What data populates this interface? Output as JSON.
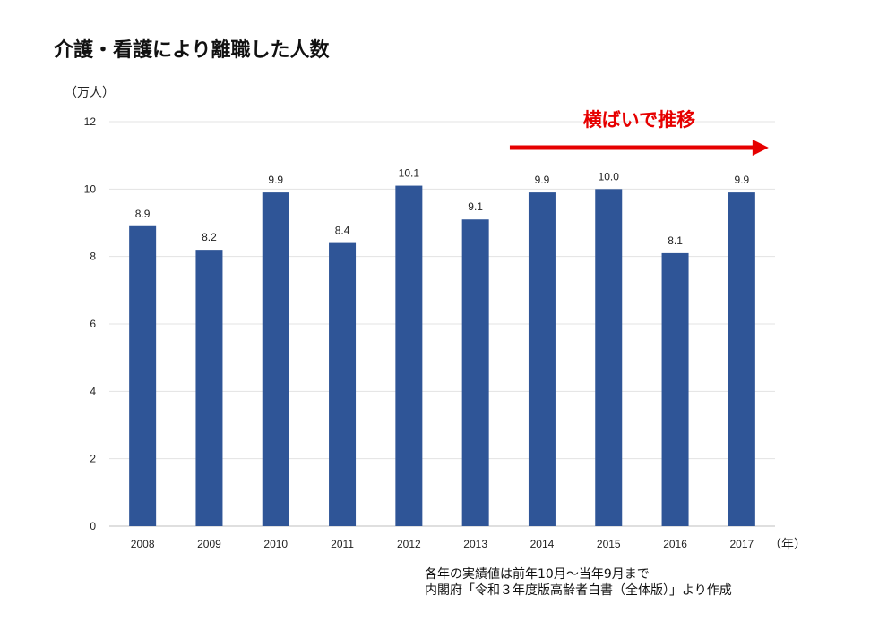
{
  "chart_data": {
    "type": "bar",
    "title": "介護・看護により離職した人数",
    "ylabel": "（万人）",
    "xlabel": "（年）",
    "categories": [
      "2008",
      "2009",
      "2010",
      "2011",
      "2012",
      "2013",
      "2014",
      "2015",
      "2016",
      "2017"
    ],
    "values": [
      8.9,
      8.2,
      9.9,
      8.4,
      10.1,
      9.1,
      9.9,
      10.0,
      8.1,
      9.9
    ],
    "data_labels": [
      "8.9",
      "8.2",
      "9.9",
      "8.4",
      "10.1",
      "9.1",
      "9.9",
      "10.0",
      "8.1",
      "9.9"
    ],
    "ylim": [
      0,
      12
    ],
    "yticks": [
      "0",
      "2",
      "4",
      "6",
      "8",
      "10",
      "12"
    ],
    "grid": true,
    "bar_color": "#2f5597",
    "annotation": {
      "text": "横ばいで推移",
      "color": "#e60000",
      "from": "2014",
      "to": "2017"
    },
    "notes": [
      "各年の実績値は前年10月～当年9月まで",
      "内閣府「令和３年度版高齢者白書（全体版）」より作成"
    ]
  }
}
